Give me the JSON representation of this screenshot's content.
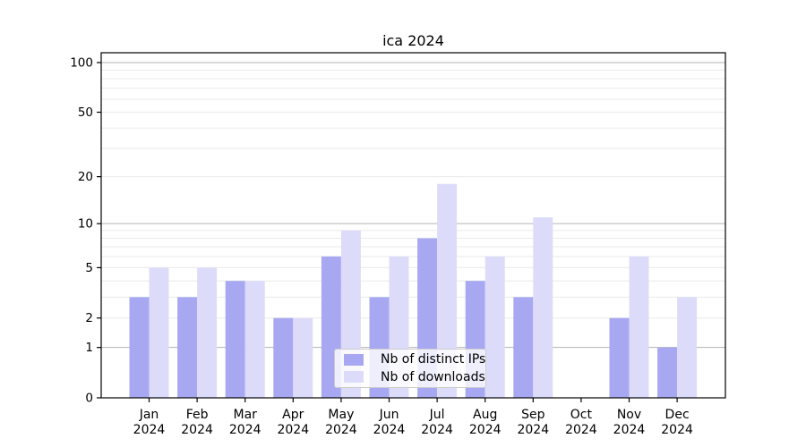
{
  "window": {
    "background": "#ffffff"
  },
  "chart_data": {
    "type": "bar",
    "title": "ica 2024",
    "categories": [
      "Jan 2024",
      "Feb 2024",
      "Mar 2024",
      "Apr 2024",
      "May 2024",
      "Jun 2024",
      "Jul 2024",
      "Aug 2024",
      "Sep 2024",
      "Oct 2024",
      "Nov 2024",
      "Dec 2024"
    ],
    "series": [
      {
        "name": "Nb of distinct IPs",
        "values": [
          3,
          3,
          4,
          2,
          6,
          3,
          8,
          4,
          3,
          0,
          2,
          1
        ]
      },
      {
        "name": "Nb of downloads",
        "values": [
          5,
          5,
          4,
          2,
          9,
          6,
          18,
          6,
          11,
          0,
          6,
          3
        ]
      }
    ],
    "xlabel": "",
    "ylabel": "",
    "yscale": "log1p",
    "ylim": [
      0,
      100
    ],
    "y_tick_values": [
      0,
      1,
      2,
      5,
      10,
      20,
      50,
      100
    ],
    "grid": {
      "major_values": [
        1,
        10,
        100
      ],
      "minor_values": [
        2,
        3,
        4,
        5,
        6,
        7,
        8,
        9,
        20,
        30,
        40,
        50,
        60,
        70,
        80,
        90
      ]
    },
    "legend_position": "bottom-center-inside"
  },
  "legend": {
    "items": [
      {
        "label": "Nb of distinct IPs",
        "color": "#a8a8f2"
      },
      {
        "label": "Nb of downloads",
        "color": "#dcdcfa"
      }
    ]
  },
  "colors": {
    "bar_distinct_ips": "#a8a8f2",
    "bar_downloads": "#dcdcfa",
    "grid_major": "#b3b3b3",
    "grid_minor": "#eaeaea",
    "axis_frame": "#000000",
    "tick_text": "#000000",
    "legend_border": "#cccccc"
  }
}
